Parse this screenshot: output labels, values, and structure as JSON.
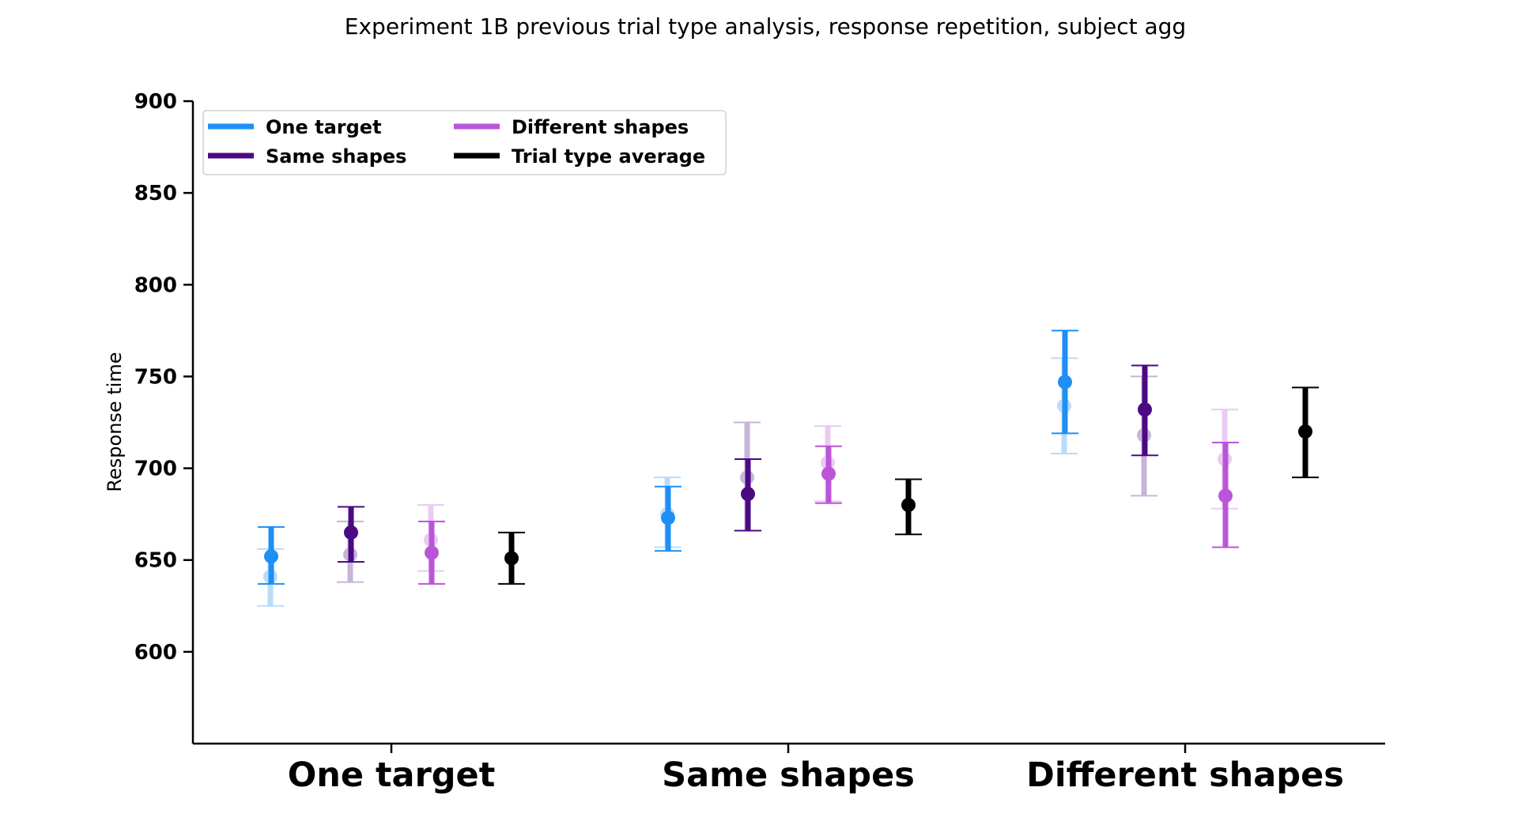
{
  "chart_data": {
    "type": "scatter",
    "title": "Experiment 1B previous trial type analysis, response repetition, subject agg",
    "xlabel": "",
    "ylabel": "Response time",
    "ylim": [
      550,
      900
    ],
    "yticks": [
      600,
      650,
      700,
      750,
      800,
      850,
      900
    ],
    "categories": [
      "One target",
      "Same shapes",
      "Different shapes"
    ],
    "grid": false,
    "legend": {
      "placement": "top-left",
      "columns": 2,
      "entries": [
        "One target",
        "Same shapes",
        "Different shapes",
        "Trial type average"
      ]
    },
    "colors": {
      "One target": "#1e8ff5",
      "Same shapes": "#4b0a84",
      "Different shapes": "#bb55d8",
      "Trial type average": "#000000"
    },
    "series": [
      {
        "name": "One target",
        "values": [
          652,
          673,
          747
        ],
        "lower": [
          637,
          655,
          719
        ],
        "upper": [
          668,
          690,
          775
        ]
      },
      {
        "name": "Same shapes",
        "values": [
          665,
          686,
          732
        ],
        "lower": [
          649,
          666,
          707
        ],
        "upper": [
          679,
          705,
          756
        ]
      },
      {
        "name": "Different shapes",
        "values": [
          654,
          697,
          685
        ],
        "lower": [
          637,
          681,
          657
        ],
        "upper": [
          671,
          712,
          714
        ]
      },
      {
        "name": "Trial type average",
        "values": [
          651,
          680,
          720
        ],
        "lower": [
          637,
          664,
          695
        ],
        "upper": [
          665,
          694,
          744
        ]
      }
    ],
    "faded_series": [
      {
        "name": "One target",
        "values": [
          641,
          675,
          734
        ],
        "lower": [
          625,
          657,
          708
        ],
        "upper": [
          656,
          695,
          760
        ]
      },
      {
        "name": "Same shapes",
        "values": [
          653,
          695,
          718
        ],
        "lower": [
          638,
          666,
          685
        ],
        "upper": [
          671,
          725,
          750
        ]
      },
      {
        "name": "Different shapes",
        "values": [
          661,
          703,
          705
        ],
        "lower": [
          644,
          682,
          678
        ],
        "upper": [
          680,
          723,
          732
        ]
      }
    ]
  }
}
